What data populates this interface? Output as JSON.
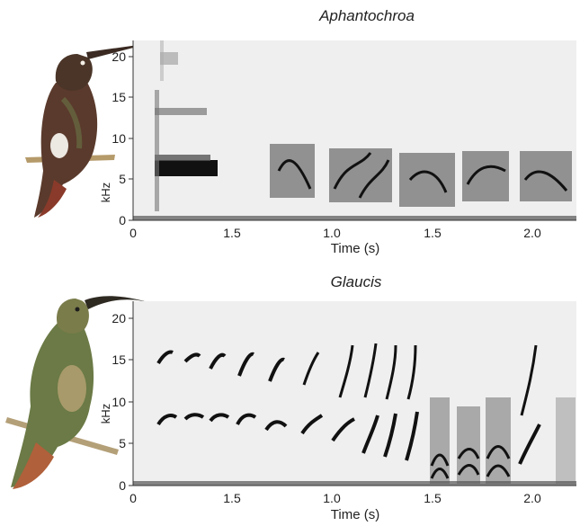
{
  "chart_data": [
    {
      "type": "heatmap",
      "title": "Aphantochroa",
      "xlabel": "Time (s)",
      "ylabel": "kHz",
      "x_ticks": [
        "0",
        "1.5",
        "1.0",
        "1.5",
        "2.0"
      ],
      "y_ticks": [
        "0",
        "5",
        "10",
        "15",
        "20"
      ],
      "ylim": [
        0,
        22
      ],
      "grid": false,
      "illustration": "hummingbird-aphantochroa"
    },
    {
      "type": "heatmap",
      "title": "Glaucis",
      "xlabel": "Time (s)",
      "ylabel": "kHz",
      "x_ticks": [
        "0",
        "1.5",
        "1.0",
        "1.5",
        "2.0"
      ],
      "y_ticks": [
        "0",
        "5",
        "10",
        "15",
        "20"
      ],
      "ylim": [
        0,
        22
      ],
      "grid": false,
      "illustration": "hummingbird-glaucis"
    }
  ],
  "colors": {
    "background": "#efefef",
    "ink": "#111111",
    "axis": "#333333"
  }
}
